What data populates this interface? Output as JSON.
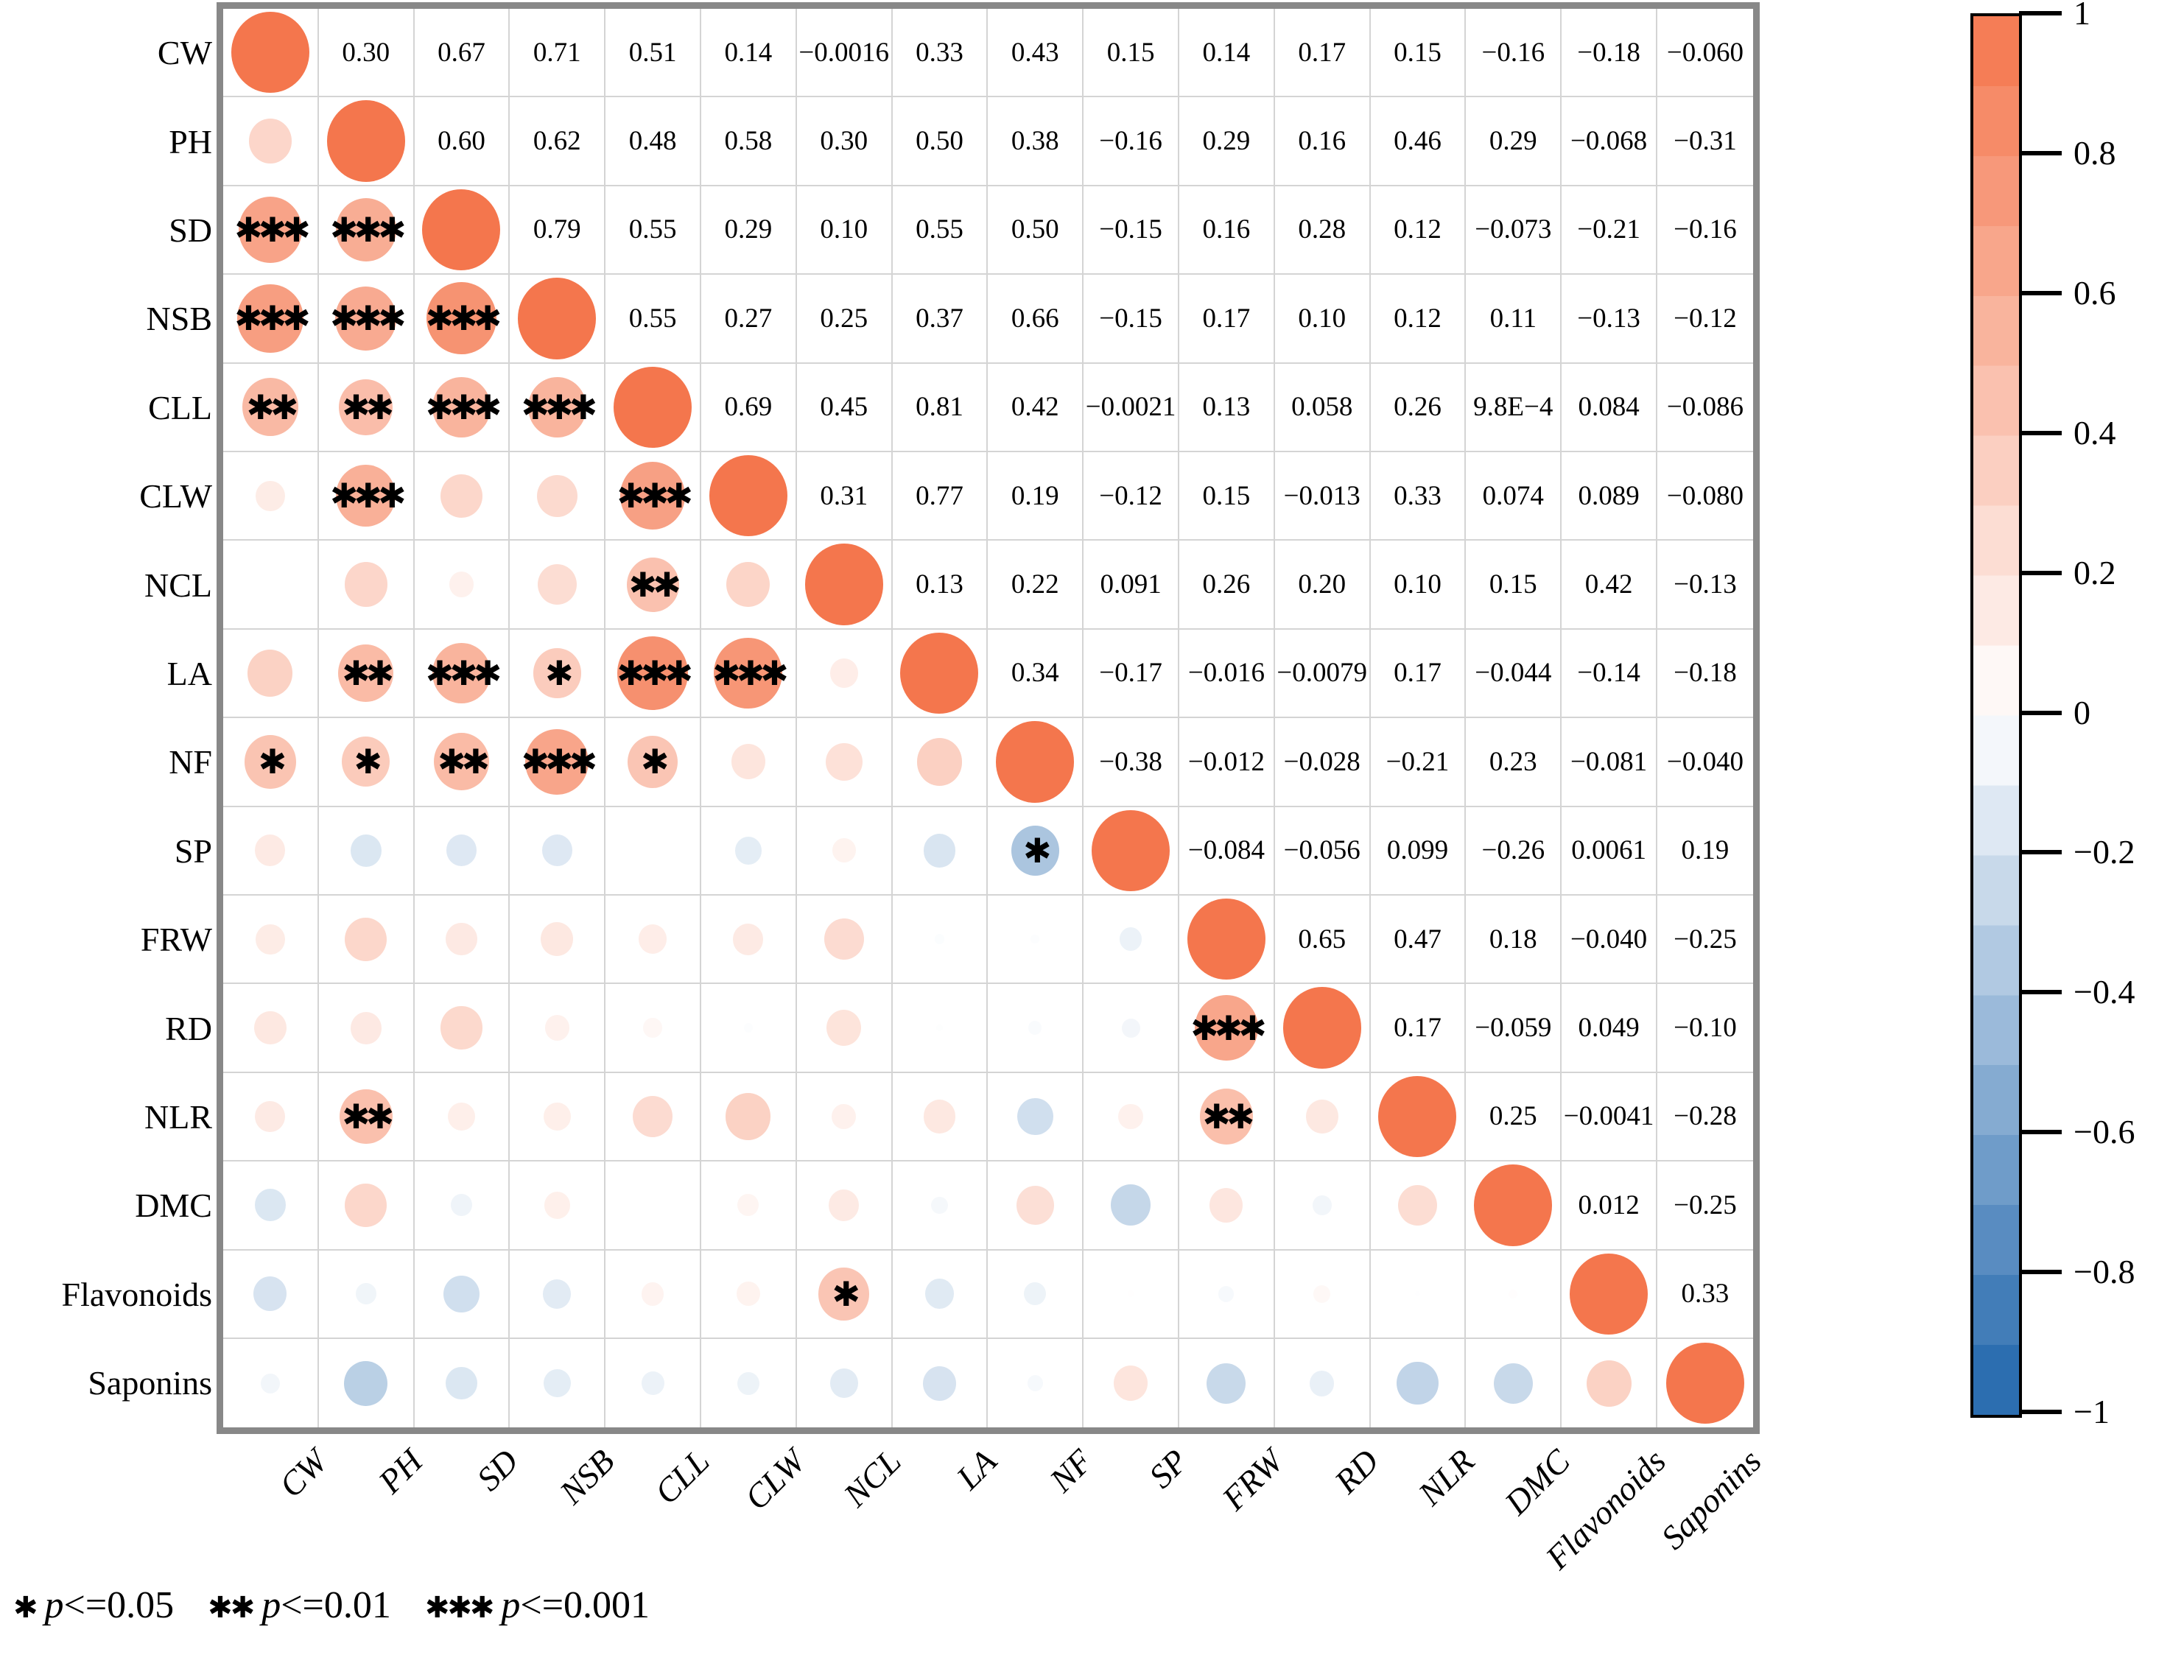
{
  "chart_data": {
    "type": "heatmap",
    "subtype": "correlation-matrix-corrplot",
    "title": "",
    "variables": [
      "CW",
      "PH",
      "SD",
      "NSB",
      "CLL",
      "CLW",
      "NCL",
      "LA",
      "NF",
      "SP",
      "FRW",
      "RD",
      "NLR",
      "DMC",
      "Flavonoids",
      "Saponins"
    ],
    "upper_triangle_labels": [
      [
        "0.30",
        "0.67",
        "0.71",
        "0.51",
        "0.14",
        "−0.0016",
        "0.33",
        "0.43",
        "0.15",
        "0.14",
        "0.17",
        "0.15",
        "−0.16",
        "−0.18",
        "−0.060"
      ],
      [
        "0.60",
        "0.62",
        "0.48",
        "0.58",
        "0.30",
        "0.50",
        "0.38",
        "−0.16",
        "0.29",
        "0.16",
        "0.46",
        "0.29",
        "−0.068",
        "−0.31"
      ],
      [
        "0.79",
        "0.55",
        "0.29",
        "0.10",
        "0.55",
        "0.50",
        "−0.15",
        "0.16",
        "0.28",
        "0.12",
        "−0.073",
        "−0.21",
        "−0.16"
      ],
      [
        "0.55",
        "0.27",
        "0.25",
        "0.37",
        "0.66",
        "−0.15",
        "0.17",
        "0.10",
        "0.12",
        "0.11",
        "−0.13",
        "−0.12"
      ],
      [
        "0.69",
        "0.45",
        "0.81",
        "0.42",
        "−0.0021",
        "0.13",
        "0.058",
        "0.26",
        "9.8E−4",
        "0.084",
        "−0.086"
      ],
      [
        "0.31",
        "0.77",
        "0.19",
        "−0.12",
        "0.15",
        "−0.013",
        "0.33",
        "0.074",
        "0.089",
        "−0.080"
      ],
      [
        "0.13",
        "0.22",
        "0.091",
        "0.26",
        "0.20",
        "0.10",
        "0.15",
        "0.42",
        "−0.13"
      ],
      [
        "0.34",
        "−0.17",
        "−0.016",
        "−0.0079",
        "0.17",
        "−0.044",
        "−0.14",
        "−0.18"
      ],
      [
        "−0.38",
        "−0.012",
        "−0.028",
        "−0.21",
        "0.23",
        "−0.081",
        "−0.040"
      ],
      [
        "−0.084",
        "−0.056",
        "0.099",
        "−0.26",
        "0.0061",
        "0.19"
      ],
      [
        "0.65",
        "0.47",
        "0.18",
        "−0.040",
        "−0.25"
      ],
      [
        "0.17",
        "−0.059",
        "0.049",
        "−0.10"
      ],
      [
        "0.25",
        "−0.0041",
        "−0.28"
      ],
      [
        "0.012",
        "−0.25"
      ],
      [
        "0.33"
      ]
    ],
    "significance": [
      {
        "row": "SD",
        "col": "CW",
        "stars": "***"
      },
      {
        "row": "SD",
        "col": "PH",
        "stars": "***"
      },
      {
        "row": "NSB",
        "col": "CW",
        "stars": "***"
      },
      {
        "row": "NSB",
        "col": "PH",
        "stars": "***"
      },
      {
        "row": "NSB",
        "col": "SD",
        "stars": "***"
      },
      {
        "row": "CLL",
        "col": "CW",
        "stars": "**"
      },
      {
        "row": "CLL",
        "col": "PH",
        "stars": "**"
      },
      {
        "row": "CLL",
        "col": "SD",
        "stars": "***"
      },
      {
        "row": "CLL",
        "col": "NSB",
        "stars": "***"
      },
      {
        "row": "CLW",
        "col": "PH",
        "stars": "***"
      },
      {
        "row": "CLW",
        "col": "CLL",
        "stars": "***"
      },
      {
        "row": "NCL",
        "col": "CLL",
        "stars": "**"
      },
      {
        "row": "LA",
        "col": "PH",
        "stars": "**"
      },
      {
        "row": "LA",
        "col": "SD",
        "stars": "***"
      },
      {
        "row": "LA",
        "col": "NSB",
        "stars": "*"
      },
      {
        "row": "LA",
        "col": "CLL",
        "stars": "***"
      },
      {
        "row": "LA",
        "col": "CLW",
        "stars": "***"
      },
      {
        "row": "NF",
        "col": "CW",
        "stars": "*"
      },
      {
        "row": "NF",
        "col": "PH",
        "stars": "*"
      },
      {
        "row": "NF",
        "col": "SD",
        "stars": "**"
      },
      {
        "row": "NF",
        "col": "NSB",
        "stars": "***"
      },
      {
        "row": "NF",
        "col": "CLL",
        "stars": "*"
      },
      {
        "row": "SP",
        "col": "NF",
        "stars": "*"
      },
      {
        "row": "RD",
        "col": "FRW",
        "stars": "***"
      },
      {
        "row": "NLR",
        "col": "PH",
        "stars": "**"
      },
      {
        "row": "NLR",
        "col": "FRW",
        "stars": "**"
      },
      {
        "row": "Flavonoids",
        "col": "NCL",
        "stars": "*"
      }
    ],
    "colorbar": {
      "tick_labels": [
        "1",
        "0.8",
        "0.6",
        "0.4",
        "0.2",
        "0",
        "−0.2",
        "−0.4",
        "−0.6",
        "−0.8",
        "−1"
      ],
      "range": [
        -1,
        1
      ],
      "positive_color": "#f4764d",
      "negative_color": "#2166ac",
      "mid_color": "#ffffff"
    },
    "legend_items": [
      {
        "stars": "*",
        "label": "p<=0.05"
      },
      {
        "stars": "**",
        "label": "p<=0.01"
      },
      {
        "stars": "***",
        "label": "p<=0.001"
      }
    ],
    "layout": {
      "grid": true,
      "legend_position": "right-colorbar",
      "diagonal_value": 1
    }
  },
  "colors": {
    "frame": "#888888",
    "gridline": "#d4d4d4",
    "text": "#000000",
    "background": "#ffffff"
  }
}
